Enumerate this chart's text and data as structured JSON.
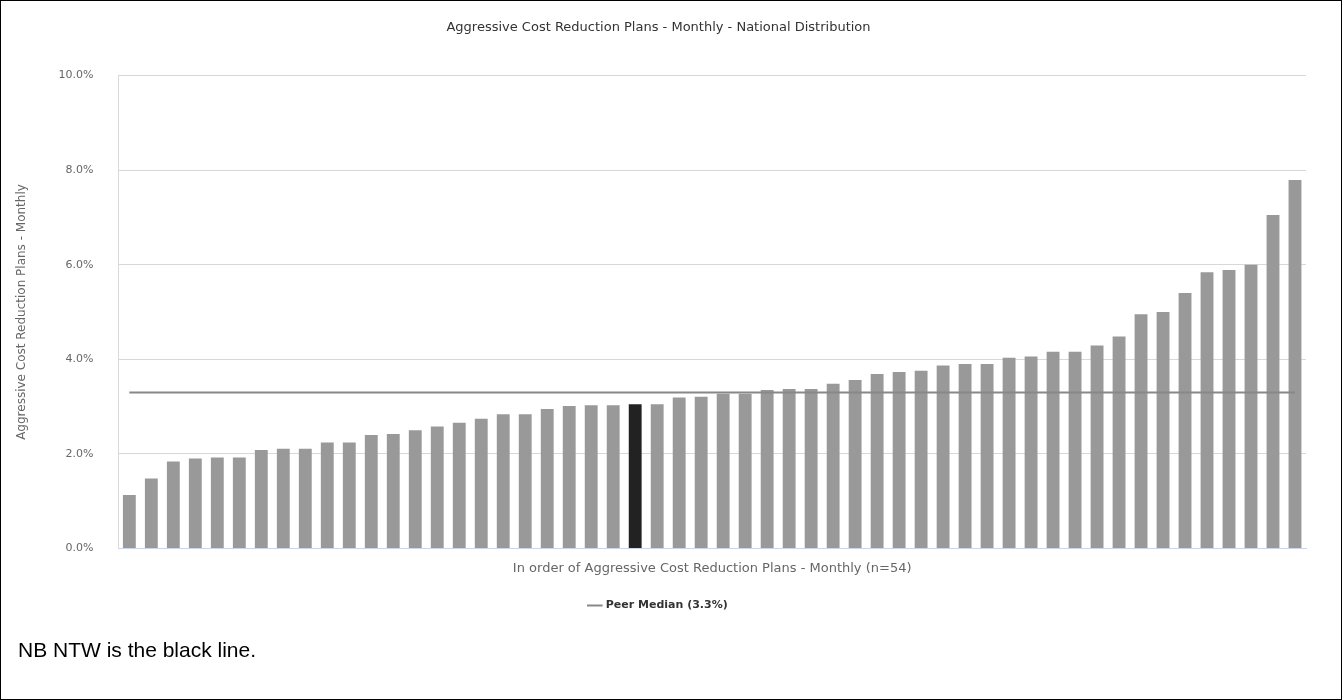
{
  "chart_data": {
    "type": "bar",
    "title": "Aggressive Cost Reduction Plans - Monthly - National Distribution",
    "xlabel": "In order of Aggressive Cost Reduction Plans - Monthly (n=54)",
    "ylabel": "Aggressive Cost Reduction Plans - Monthly",
    "categories": [
      null,
      null,
      null,
      null,
      null,
      null,
      null,
      null,
      null,
      null,
      null,
      null,
      null,
      null,
      null,
      null,
      null,
      null,
      null,
      null,
      null,
      null,
      null,
      null,
      null,
      null,
      null,
      null,
      null,
      null,
      null,
      null,
      null,
      null,
      null,
      null,
      null,
      null,
      null,
      null,
      null,
      null,
      null,
      null,
      null,
      null,
      null,
      null,
      null,
      null,
      null,
      null,
      null,
      null
    ],
    "series": [
      {
        "colors": [
          "#999999",
          "#999999",
          "#999999",
          "#999999",
          "#999999",
          "#999999",
          "#999999",
          "#999999",
          "#999999",
          "#999999",
          "#999999",
          "#999999",
          "#999999",
          "#999999",
          "#999999",
          "#999999",
          "#999999",
          "#999999",
          "#999999",
          "#999999",
          "#999999",
          "#999999",
          "#999999",
          "#222222",
          "#999999",
          "#999999",
          "#999999",
          "#999999",
          "#999999",
          "#999999",
          "#999999",
          "#999999",
          "#999999",
          "#999999",
          "#999999",
          "#999999",
          "#999999",
          "#999999",
          "#999999",
          "#999999",
          "#999999",
          "#999999",
          "#999999",
          "#999999",
          "#999999",
          "#999999",
          "#999999",
          "#999999",
          "#999999",
          "#999999",
          "#999999",
          "#999999",
          "#999999",
          "#999999"
        ],
        "values": [
          1.13,
          1.48,
          1.84,
          1.9,
          1.92,
          1.92,
          2.08,
          2.11,
          2.11,
          2.24,
          2.24,
          2.4,
          2.42,
          2.5,
          2.58,
          2.66,
          2.74,
          2.84,
          2.84,
          2.95,
          3.01,
          3.03,
          3.03,
          3.05,
          3.05,
          3.19,
          3.21,
          3.27,
          3.27,
          3.35,
          3.37,
          3.37,
          3.48,
          3.56,
          3.69,
          3.73,
          3.76,
          3.87,
          3.9,
          3.9,
          4.03,
          4.06,
          4.16,
          4.16,
          4.29,
          4.48,
          4.95,
          5.0,
          5.4,
          5.84,
          5.89,
          6.0,
          7.05,
          7.79
        ]
      },
      {
        "type": "line",
        "name": "Peer Median (3.3%)",
        "color": "#888888",
        "values": [
          3.3,
          3.3,
          3.3,
          3.3,
          3.3,
          3.3,
          3.3,
          3.3,
          3.3,
          3.3,
          3.3,
          3.3,
          3.3,
          3.3,
          3.3,
          3.3,
          3.3,
          3.3,
          3.3,
          3.3,
          3.3,
          3.3,
          3.3,
          3.3,
          3.3,
          3.3,
          3.3,
          3.3,
          3.3,
          3.3,
          3.3,
          3.3,
          3.3,
          3.3,
          3.3,
          3.3,
          3.3,
          3.3,
          3.3,
          3.3,
          3.3,
          3.3,
          3.3,
          3.3,
          3.3,
          3.3,
          3.3,
          3.3,
          3.3,
          3.3,
          3.3,
          3.3,
          3.3,
          3.3
        ]
      }
    ],
    "ylim": [
      0,
      10
    ],
    "yticks": [
      {
        "value": 0,
        "label": "0.0%"
      },
      {
        "value": 2,
        "label": "2.0%"
      },
      {
        "value": 4,
        "label": "4.0%"
      },
      {
        "value": 6,
        "label": "6.0%"
      },
      {
        "value": 8,
        "label": "8.0%"
      },
      {
        "value": 10,
        "label": "10.0%"
      }
    ],
    "grid": "y",
    "legend": "bottom",
    "marker": "none",
    "tick_labels": "y",
    "annotations": [
      "NB NTW is the black line."
    ]
  }
}
